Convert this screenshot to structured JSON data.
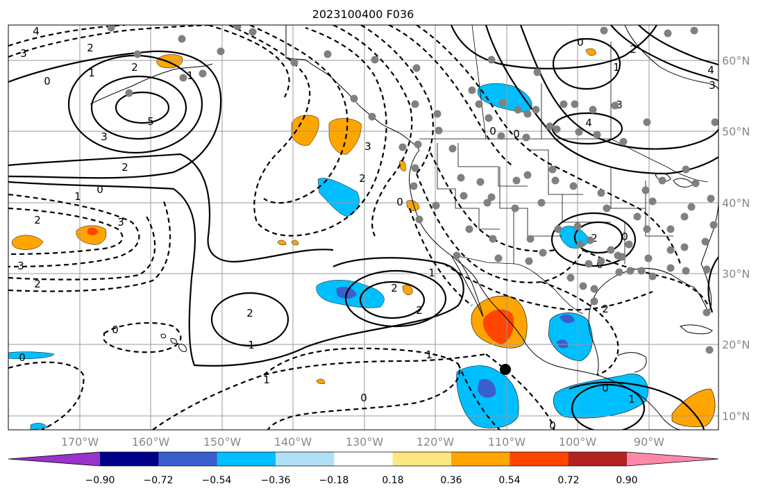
{
  "title": "2023100400 F036",
  "map": {
    "lon_range": [
      -180,
      -80
    ],
    "lat_range": [
      8,
      65
    ],
    "lon_ticks": [
      "170°W",
      "160°W",
      "150°W",
      "140°W",
      "130°W",
      "120°W",
      "110°W",
      "100°W",
      "90°W"
    ],
    "lat_ticks": [
      "60°N",
      "50°N",
      "40°N",
      "30°N",
      "20°N",
      "10°N"
    ],
    "grid": true,
    "contour_labels": [
      {
        "text": "4"
      },
      {
        "text": "3"
      },
      {
        "text": "2"
      },
      {
        "text": "1"
      },
      {
        "text": "0"
      },
      {
        "text": "5"
      },
      {
        "text": "3"
      },
      {
        "text": "2"
      },
      {
        "text": "0"
      },
      {
        "text": "1"
      },
      {
        "text": "2"
      },
      {
        "text": "3"
      },
      {
        "text": "3"
      },
      {
        "text": "2"
      },
      {
        "text": "2"
      },
      {
        "text": "2"
      },
      {
        "text": "1"
      },
      {
        "text": "2"
      },
      {
        "text": "0"
      },
      {
        "text": "1"
      },
      {
        "text": "1"
      },
      {
        "text": "0"
      },
      {
        "text": "0"
      },
      {
        "text": "1"
      },
      {
        "text": "0"
      },
      {
        "text": "2"
      },
      {
        "text": "1"
      },
      {
        "text": "0"
      },
      {
        "text": "3"
      },
      {
        "text": "0"
      },
      {
        "text": "2"
      },
      {
        "text": "4"
      },
      {
        "text": "3"
      },
      {
        "text": "4"
      },
      {
        "text": "0"
      },
      {
        "text": "1"
      },
      {
        "text": "2"
      },
      {
        "text": "0"
      },
      {
        "text": "2"
      },
      {
        "text": "2"
      },
      {
        "text": "3"
      },
      {
        "text": "0"
      },
      {
        "text": "0"
      },
      {
        "text": "0"
      },
      {
        "text": "1"
      }
    ]
  },
  "colorbar": {
    "colors": [
      "#9933cc",
      "#00008b",
      "#3a5fcd",
      "#00bfff",
      "#b0e0f8",
      "#ffffff",
      "#ffe680",
      "#ffa500",
      "#ff4500",
      "#b22222",
      "#ff88aa"
    ],
    "tick_labels": [
      "−0.90",
      "−0.72",
      "−0.54",
      "−0.36",
      "−0.18",
      "0.18",
      "0.36",
      "0.54",
      "0.72",
      "0.90"
    ]
  },
  "colors": {
    "grid": "#999999",
    "tick_label": "#888888",
    "contour": "#000000",
    "station": "#808080",
    "marker": "#000000"
  }
}
